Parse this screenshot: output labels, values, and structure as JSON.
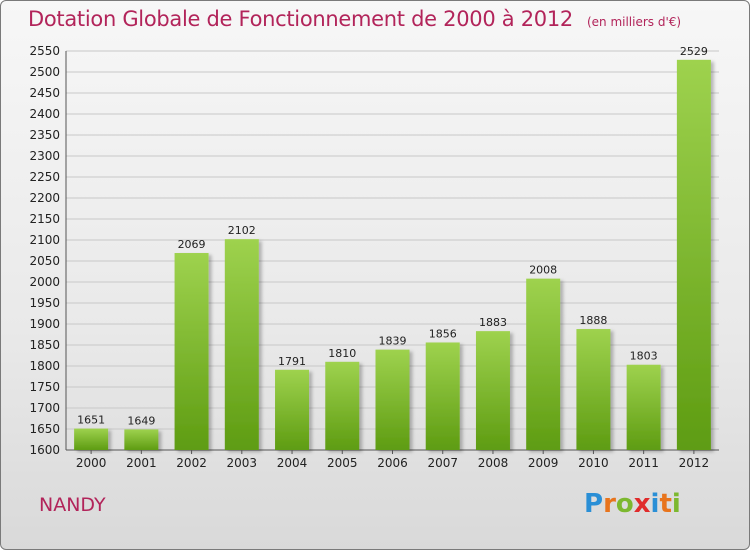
{
  "header": {
    "title": "Dotation Globale de Fonctionnement de 2000 à 2012",
    "subtitle": "(en milliers d'€)"
  },
  "footer": {
    "town": "NANDY",
    "logo_text": "Proxiti",
    "logo_letters": [
      {
        "ch": "P",
        "color": "#2a8fd6"
      },
      {
        "ch": "r",
        "color": "#e8741c"
      },
      {
        "ch": "o",
        "color": "#7cb82f"
      },
      {
        "ch": "x",
        "color": "#e02b2b"
      },
      {
        "ch": "i",
        "color": "#2a8fd6"
      },
      {
        "ch": "t",
        "color": "#e8741c"
      },
      {
        "ch": "i",
        "color": "#7cb82f"
      }
    ]
  },
  "colors": {
    "bar_top": "#9ed24e",
    "bar_bottom": "#5e9c12",
    "grid": "#c8c8c8",
    "title": "#b2245a"
  },
  "chart_data": {
    "type": "bar",
    "title": "Dotation Globale de Fonctionnement de 2000 à 2012",
    "subtitle": "(en milliers d'€)",
    "categories": [
      "2000",
      "2001",
      "2002",
      "2003",
      "2004",
      "2005",
      "2006",
      "2007",
      "2008",
      "2009",
      "2010",
      "2011",
      "2012"
    ],
    "values": [
      1651,
      1649,
      2069,
      2102,
      1791,
      1810,
      1839,
      1856,
      1883,
      2008,
      1888,
      1803,
      2529
    ],
    "ylim": [
      1600,
      2550
    ],
    "yticks": [
      1600,
      1650,
      1700,
      1750,
      1800,
      1850,
      1900,
      1950,
      2000,
      2050,
      2100,
      2150,
      2200,
      2250,
      2300,
      2350,
      2400,
      2450,
      2500,
      2550
    ],
    "grid": true,
    "data_labels": true
  }
}
